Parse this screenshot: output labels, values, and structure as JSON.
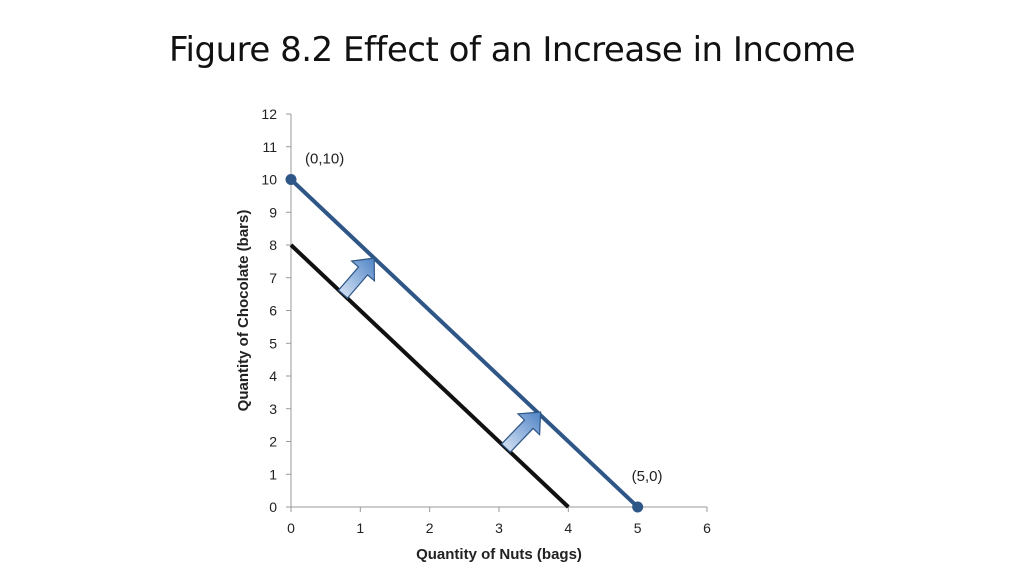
{
  "slide": {
    "title": "Figure 8.2 Effect of an Increase in Income"
  },
  "chart_data": {
    "type": "line",
    "xlabel": "Quantity of Nuts (bags)",
    "ylabel": "Quantity of Chocolate (bars)",
    "xlim": [
      0,
      6
    ],
    "ylim": [
      0,
      12
    ],
    "x_ticks": [
      0,
      1,
      2,
      3,
      4,
      5,
      6
    ],
    "y_ticks": [
      0,
      1,
      2,
      3,
      4,
      5,
      6,
      7,
      8,
      9,
      10,
      11,
      12
    ],
    "grid": false,
    "series": [
      {
        "points": [
          [
            0,
            8
          ],
          [
            4,
            0
          ]
        ],
        "color": "#111111"
      },
      {
        "points": [
          [
            0,
            10
          ],
          [
            5,
            0
          ]
        ],
        "color": "#2e5687",
        "endpoint_markers": true
      }
    ],
    "annotations": [
      {
        "text": "(0,10)",
        "x": 0,
        "y": 10
      },
      {
        "text": "(5,0)",
        "x": 5,
        "y": 0
      }
    ],
    "arrows": [
      {
        "from": [
          0.75,
          6.5
        ],
        "to": [
          1.2,
          7.6
        ]
      },
      {
        "from": [
          3.1,
          1.8
        ],
        "to": [
          3.6,
          2.9
        ]
      }
    ],
    "arrow_color": "#5b8fcf"
  }
}
